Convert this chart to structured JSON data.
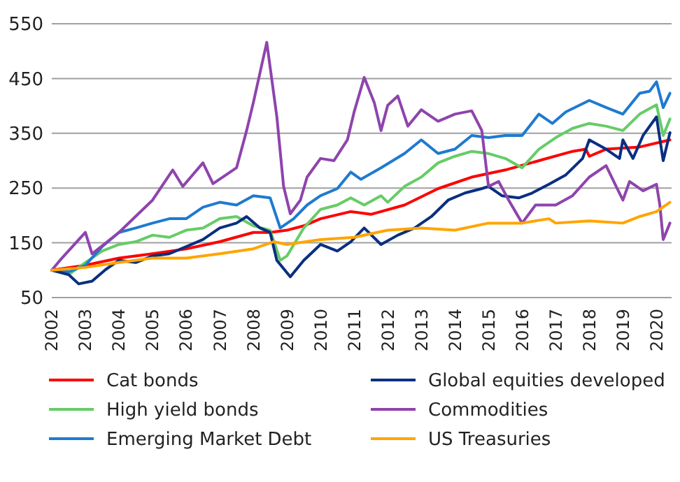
{
  "chart_data": {
    "type": "line",
    "xlim": [
      2002,
      2020.45
    ],
    "xticks": [
      2002,
      2003,
      2004,
      2005,
      2006,
      2007,
      2008,
      2009,
      2010,
      2011,
      2012,
      2013,
      2014,
      2015,
      2016,
      2017,
      2018,
      2019,
      2020
    ],
    "ylim": [
      50,
      550
    ],
    "yticks": [
      50,
      150,
      250,
      350,
      450,
      550
    ],
    "grid": "y",
    "legend": "bottom",
    "marker": "none",
    "line_style": "solid",
    "series": [
      {
        "name": "Cat bonds",
        "color": "#ff0000",
        "x": [
          2002,
          2003,
          2004,
          2005,
          2006,
          2007,
          2008,
          2008.5,
          2009,
          2009.5,
          2010,
          2010.9,
          2011.5,
          2012.5,
          2013.5,
          2014.5,
          2015.5,
          2016.5,
          2017.5,
          2017.9,
          2018,
          2018.5,
          2019.5,
          2020.4
        ],
        "values": [
          100,
          109,
          122,
          130,
          139,
          152,
          169,
          169,
          173,
          181,
          194,
          207,
          202,
          219,
          249,
          270,
          283,
          300,
          317,
          321,
          308,
          321,
          325,
          338
        ]
      },
      {
        "name": "High yield bonds",
        "color": "#66cc66",
        "x": [
          2002,
          2002.5,
          2003,
          2003.5,
          2004,
          2004.5,
          2005,
          2005.5,
          2006,
          2006.5,
          2007,
          2007.5,
          2008,
          2008.5,
          2008.8,
          2009,
          2009.5,
          2010,
          2010.5,
          2010.9,
          2011.3,
          2011.8,
          2012,
          2012.5,
          2013,
          2013.5,
          2014,
          2014.5,
          2015,
          2015.5,
          2016,
          2016.5,
          2017,
          2017.5,
          2018,
          2018.5,
          2019,
          2019.5,
          2020,
          2020.2,
          2020.4
        ],
        "values": [
          100,
          92,
          114,
          135,
          147,
          152,
          164,
          160,
          173,
          177,
          194,
          198,
          181,
          173,
          118,
          126,
          177,
          211,
          219,
          232,
          219,
          236,
          224,
          253,
          270,
          296,
          308,
          317,
          313,
          304,
          287,
          321,
          342,
          359,
          368,
          363,
          355,
          385,
          402,
          346,
          376
        ]
      },
      {
        "name": "Emerging Market Debt",
        "color": "#1f7ad0",
        "x": [
          2002,
          2002.5,
          2003,
          2003.5,
          2004,
          2004.5,
          2005,
          2005.5,
          2006,
          2006.5,
          2007,
          2007.5,
          2008,
          2008.5,
          2008.8,
          2009.2,
          2009.6,
          2010,
          2010.5,
          2010.9,
          2011.2,
          2011.8,
          2012.5,
          2013,
          2013.5,
          2014,
          2014.5,
          2015,
          2015.5,
          2016,
          2016.5,
          2016.9,
          2017.3,
          2018,
          2018.5,
          2019,
          2019.5,
          2019.8,
          2020,
          2020.2,
          2020.4
        ],
        "values": [
          100,
          97,
          109,
          143,
          169,
          177,
          186,
          194,
          194,
          215,
          224,
          219,
          236,
          232,
          177,
          194,
          219,
          236,
          249,
          279,
          266,
          287,
          313,
          338,
          313,
          321,
          346,
          342,
          346,
          346,
          385,
          368,
          389,
          410,
          397,
          385,
          423,
          427,
          444,
          397,
          423
        ]
      },
      {
        "name": "Global equities developed",
        "color": "#0a2f80",
        "x": [
          2002,
          2002.5,
          2002.8,
          2003.2,
          2003.6,
          2004,
          2004.5,
          2005,
          2005.5,
          2006,
          2006.5,
          2007,
          2007.5,
          2007.8,
          2008.2,
          2008.5,
          2008.7,
          2009.1,
          2009.5,
          2010,
          2010.5,
          2010.9,
          2011.3,
          2011.8,
          2012.3,
          2012.8,
          2013.3,
          2013.8,
          2014.3,
          2014.8,
          2015,
          2015.4,
          2015.9,
          2016.3,
          2016.8,
          2017.3,
          2017.8,
          2018,
          2018.5,
          2018.9,
          2019,
          2019.3,
          2019.6,
          2020,
          2020.2,
          2020.4
        ],
        "values": [
          100,
          92,
          75,
          80,
          101,
          118,
          114,
          126,
          130,
          143,
          156,
          177,
          186,
          198,
          177,
          169,
          118,
          88,
          118,
          147,
          135,
          152,
          177,
          147,
          164,
          177,
          198,
          228,
          241,
          249,
          253,
          236,
          232,
          241,
          257,
          274,
          304,
          338,
          321,
          304,
          338,
          304,
          346,
          380,
          300,
          351
        ]
      },
      {
        "name": "Commodities",
        "color": "#8e44ad",
        "x": [
          2002,
          2002.3,
          2003,
          2003.2,
          2004,
          2005,
          2005.6,
          2005.9,
          2006.5,
          2006.8,
          2007.5,
          2007.8,
          2008,
          2008.4,
          2008.7,
          2008.9,
          2009.1,
          2009.4,
          2009.6,
          2010,
          2010.4,
          2010.8,
          2011,
          2011.3,
          2011.6,
          2011.8,
          2012,
          2012.3,
          2012.6,
          2013,
          2013.5,
          2014,
          2014.5,
          2014.8,
          2015,
          2015.3,
          2015.6,
          2016,
          2016.4,
          2017,
          2017.5,
          2018,
          2018.5,
          2018.8,
          2019,
          2019.2,
          2019.6,
          2020,
          2020.1,
          2020.2,
          2020.4
        ],
        "values": [
          100,
          122,
          169,
          130,
          169,
          228,
          283,
          253,
          296,
          258,
          287,
          355,
          406,
          516,
          380,
          253,
          203,
          228,
          270,
          304,
          300,
          338,
          389,
          452,
          406,
          355,
          401,
          418,
          363,
          393,
          372,
          385,
          391,
          355,
          253,
          262,
          228,
          186,
          219,
          219,
          236,
          270,
          291,
          253,
          228,
          262,
          245,
          257,
          219,
          156,
          186
        ]
      },
      {
        "name": "US Treasuries",
        "color": "#ffa500",
        "x": [
          2002,
          2003,
          2004,
          2005,
          2006,
          2007,
          2008,
          2008.6,
          2009,
          2010,
          2011,
          2012,
          2013,
          2014,
          2015,
          2016,
          2016.8,
          2017,
          2018,
          2019,
          2019.5,
          2020,
          2020.4
        ],
        "values": [
          100,
          105,
          114,
          122,
          122,
          130,
          139,
          152,
          147,
          156,
          160,
          173,
          177,
          173,
          186,
          186,
          194,
          186,
          190,
          186,
          198,
          207,
          224
        ]
      }
    ]
  }
}
